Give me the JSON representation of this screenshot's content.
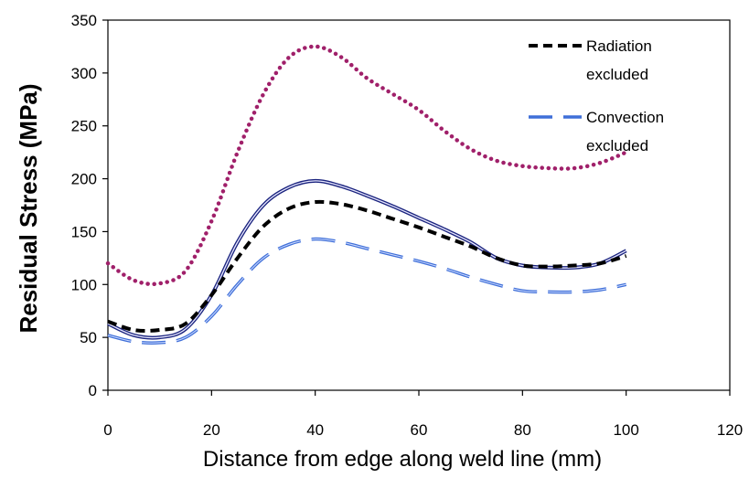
{
  "chart_data": {
    "type": "line",
    "title": "",
    "xlabel": "Distance from edge along weld line (mm)",
    "ylabel": "Residual Stress (MPa)",
    "xlim": [
      0,
      120
    ],
    "ylim": [
      0,
      350
    ],
    "xticks": [
      "0",
      "20",
      "40",
      "60",
      "80",
      "100",
      "120"
    ],
    "yticks": [
      "0",
      "50",
      "100",
      "150",
      "200",
      "250",
      "300",
      "350"
    ],
    "grid": false,
    "legend": "top-right",
    "series": [
      {
        "name": "",
        "style": "dotted",
        "color": "#a0206a",
        "x": [
          0,
          5,
          10,
          15,
          20,
          25,
          30,
          35,
          40,
          45,
          50,
          55,
          60,
          65,
          70,
          75,
          80,
          85,
          90,
          95,
          100
        ],
        "y": [
          120,
          104,
          101,
          113,
          160,
          225,
          280,
          315,
          325,
          315,
          295,
          280,
          265,
          245,
          228,
          217,
          212,
          210,
          210,
          215,
          225
        ]
      },
      {
        "name": "",
        "style": "solid-double",
        "color": "#1a237e",
        "x": [
          0,
          5,
          10,
          15,
          20,
          25,
          30,
          35,
          40,
          45,
          50,
          55,
          60,
          65,
          70,
          75,
          80,
          85,
          90,
          95,
          100
        ],
        "y": [
          63,
          52,
          50,
          58,
          90,
          140,
          175,
          192,
          198,
          193,
          184,
          174,
          163,
          152,
          140,
          125,
          118,
          116,
          116,
          120,
          132
        ]
      },
      {
        "name": "Radiation excluded",
        "style": "short-dash",
        "color": "#000000",
        "x": [
          0,
          5,
          10,
          15,
          20,
          25,
          30,
          35,
          40,
          45,
          50,
          55,
          60,
          65,
          70,
          75,
          80,
          85,
          90,
          95,
          100
        ],
        "y": [
          65,
          57,
          57,
          63,
          90,
          125,
          155,
          172,
          178,
          176,
          170,
          162,
          154,
          145,
          136,
          125,
          118,
          117,
          118,
          120,
          127
        ]
      },
      {
        "name": "Convection excluded",
        "style": "long-dash",
        "color": "#3f6fd8",
        "x": [
          0,
          5,
          10,
          15,
          20,
          25,
          30,
          35,
          40,
          45,
          50,
          55,
          60,
          65,
          70,
          75,
          80,
          85,
          90,
          95,
          100
        ],
        "y": [
          52,
          46,
          45,
          50,
          70,
          100,
          125,
          138,
          143,
          140,
          134,
          128,
          122,
          115,
          107,
          100,
          94,
          93,
          93,
          95,
          100
        ]
      }
    ]
  }
}
